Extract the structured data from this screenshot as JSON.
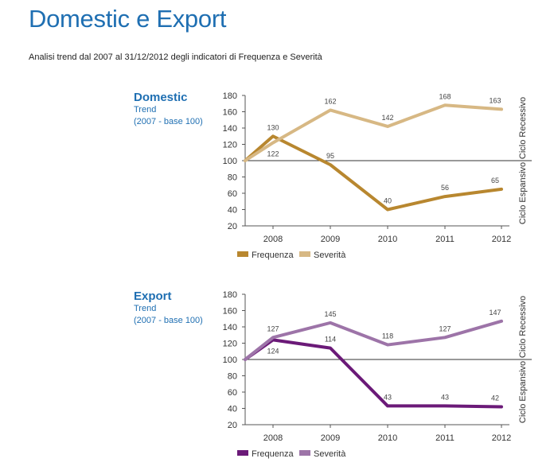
{
  "page": {
    "title": "Domestic e Export",
    "subtitle": "Analisi trend dal 2007 al 31/12/2012 degli indicatori di Frequenza e Severità"
  },
  "chart_data": [
    {
      "type": "line",
      "label": {
        "name": "Domestic",
        "line1": "Trend",
        "line2": "(2007 - base 100)"
      },
      "x": [
        "2007",
        "2008",
        "2009",
        "2010",
        "2011",
        "2012"
      ],
      "categories": [
        "2008",
        "2009",
        "2010",
        "2011",
        "2012"
      ],
      "ylim": [
        20,
        180
      ],
      "yticks": [
        20,
        40,
        60,
        80,
        100,
        120,
        140,
        160,
        180
      ],
      "baseline": 100,
      "side_labels": {
        "upper": "Ciclo Recessivo",
        "lower": "Ciclo Espansivo"
      },
      "legend_position": "bottom",
      "series": [
        {
          "name": "Frequenza",
          "color": "#b8872f",
          "values": [
            100,
            130,
            95,
            40,
            56,
            65
          ],
          "label_pos": [
            "",
            "above",
            "above",
            "above",
            "above",
            "above"
          ]
        },
        {
          "name": "Severità",
          "color": "#d7b884",
          "values": [
            100,
            122,
            162,
            142,
            168,
            163
          ],
          "label_pos": [
            "",
            "below",
            "above",
            "above",
            "above",
            "above"
          ]
        }
      ]
    },
    {
      "type": "line",
      "label": {
        "name": "Export",
        "line1": "Trend",
        "line2": "(2007 - base 100)"
      },
      "x": [
        "2007",
        "2008",
        "2009",
        "2010",
        "2011",
        "2012"
      ],
      "categories": [
        "2008",
        "2009",
        "2010",
        "2011",
        "2012"
      ],
      "ylim": [
        20,
        180
      ],
      "yticks": [
        20,
        40,
        60,
        80,
        100,
        120,
        140,
        160,
        180
      ],
      "baseline": 100,
      "side_labels": {
        "upper": "Ciclo Recessivo",
        "lower": "Ciclo Espansivo"
      },
      "legend_position": "bottom",
      "series": [
        {
          "name": "Frequenza",
          "color": "#6b1a78",
          "values": [
            100,
            124,
            114,
            43,
            43,
            42
          ],
          "label_pos": [
            "",
            "below",
            "above",
            "above",
            "above",
            "above"
          ]
        },
        {
          "name": "Severità",
          "color": "#9d74a8",
          "values": [
            100,
            127,
            145,
            118,
            127,
            147
          ],
          "label_pos": [
            "",
            "above",
            "above",
            "above",
            "above",
            "above"
          ]
        }
      ]
    }
  ]
}
